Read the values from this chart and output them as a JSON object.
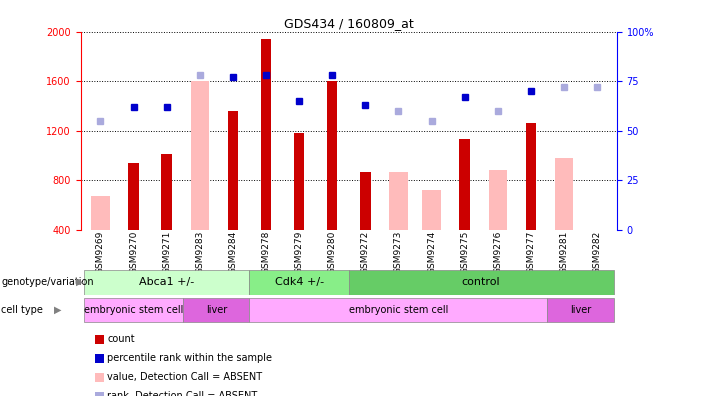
{
  "title": "GDS434 / 160809_at",
  "samples": [
    "GSM9269",
    "GSM9270",
    "GSM9271",
    "GSM9283",
    "GSM9284",
    "GSM9278",
    "GSM9279",
    "GSM9280",
    "GSM9272",
    "GSM9273",
    "GSM9274",
    "GSM9275",
    "GSM9276",
    "GSM9277",
    "GSM9281",
    "GSM9282"
  ],
  "count_values": [
    null,
    940,
    1010,
    null,
    1360,
    1940,
    1185,
    1600,
    870,
    null,
    null,
    1130,
    null,
    1260,
    null,
    null
  ],
  "absent_values": [
    670,
    null,
    null,
    1600,
    null,
    null,
    null,
    null,
    null,
    870,
    720,
    null,
    880,
    null,
    980,
    380
  ],
  "percentile_rank": [
    null,
    62,
    62,
    null,
    77,
    78,
    65,
    78,
    63,
    null,
    null,
    67,
    null,
    70,
    null,
    null
  ],
  "absent_rank": [
    55,
    null,
    null,
    78,
    null,
    null,
    null,
    null,
    null,
    60,
    55,
    null,
    60,
    null,
    72,
    72
  ],
  "ylim_left": [
    400,
    2000
  ],
  "ylim_right": [
    0,
    100
  ],
  "yticks_left": [
    400,
    800,
    1200,
    1600,
    2000
  ],
  "yticks_right": [
    0,
    25,
    50,
    75,
    100
  ],
  "genotype_groups": [
    {
      "label": "Abca1 +/-",
      "start": 0,
      "end": 5,
      "color": "#ccffcc"
    },
    {
      "label": "Cdk4 +/-",
      "start": 5,
      "end": 8,
      "color": "#88ee88"
    },
    {
      "label": "control",
      "start": 8,
      "end": 16,
      "color": "#66cc66"
    }
  ],
  "celltype_groups": [
    {
      "label": "embryonic stem cell",
      "start": 0,
      "end": 3,
      "color": "#ffaaff"
    },
    {
      "label": "liver",
      "start": 3,
      "end": 5,
      "color": "#dd66dd"
    },
    {
      "label": "embryonic stem cell",
      "start": 5,
      "end": 14,
      "color": "#ffaaff"
    },
    {
      "label": "liver",
      "start": 14,
      "end": 16,
      "color": "#dd66dd"
    }
  ],
  "bar_color_count": "#cc0000",
  "bar_color_absent": "#ffbbbb",
  "dot_color_rank": "#0000cc",
  "dot_color_absent_rank": "#aaaadd",
  "bg_color": "#ffffff",
  "plot_bg": "#ffffff"
}
